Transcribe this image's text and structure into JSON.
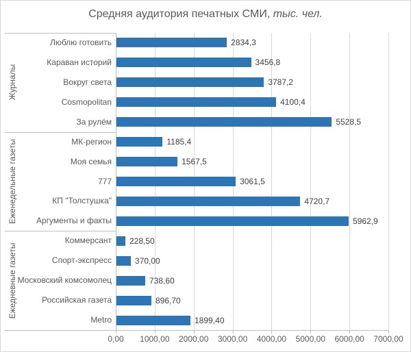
{
  "title": {
    "text": "Средняя аудитория печатных СМИ, ",
    "unit_italic": "тыс. чел."
  },
  "colors": {
    "bar": "#2E75B6",
    "gridline": "#D9D9D9",
    "axis_line": "#BFBFBF",
    "category_text": "#595959",
    "value_text": "#404040",
    "title_text": "#595959",
    "chart_border": "#D9D9D9",
    "background": "#FFFFFF"
  },
  "chart_data": {
    "type": "bar",
    "orientation": "horizontal",
    "title": "Средняя аудитория печатных СМИ, тыс. чел.",
    "xlabel": "",
    "ylabel": "",
    "xlim": [
      0,
      7000
    ],
    "x_tick_values": [
      0,
      1000,
      2000,
      3000,
      4000,
      5000,
      6000,
      7000
    ],
    "x_ticks": [
      "0,00",
      "1000,00",
      "2000,00",
      "3000,00",
      "4000,00",
      "5000,00",
      "6000,00",
      "7000,00"
    ],
    "grid": true,
    "legend": "none",
    "groups": [
      {
        "label": "Журналы",
        "items": [
          {
            "category": "Люблю готовить",
            "value": 2834.3,
            "value_label": "2834,3"
          },
          {
            "category": "Караван историй",
            "value": 3456.8,
            "value_label": "3456,8"
          },
          {
            "category": "Вокруг света",
            "value": 3787.2,
            "value_label": "3787,2"
          },
          {
            "category": "Cosmopolitan",
            "value": 4100.4,
            "value_label": "4100,4"
          },
          {
            "category": "За рулём",
            "value": 5528.5,
            "value_label": "5528,5"
          }
        ]
      },
      {
        "label": "Еженедельные газеты",
        "items": [
          {
            "category": "МК-регион",
            "value": 1185.4,
            "value_label": "1185,4"
          },
          {
            "category": "Моя семья",
            "value": 1567.5,
            "value_label": "1567,5"
          },
          {
            "category": "777",
            "value": 3061.5,
            "value_label": "3061,5"
          },
          {
            "category": "КП \"Толстушка\"",
            "value": 4720.7,
            "value_label": "4720,7"
          },
          {
            "category": "Аргументы и факты",
            "value": 5962.9,
            "value_label": "5962,9"
          }
        ]
      },
      {
        "label": "Ежедневные газеты",
        "items": [
          {
            "category": "Коммерсант",
            "value": 228.5,
            "value_label": "228,50"
          },
          {
            "category": "Спорт-экспресс",
            "value": 370.0,
            "value_label": "370,00"
          },
          {
            "category": "Московский комсомолец",
            "value": 738.6,
            "value_label": "738,60"
          },
          {
            "category": "Российская газета",
            "value": 896.7,
            "value_label": "896,70"
          },
          {
            "category": "Metro",
            "value": 1899.4,
            "value_label": "1899,40"
          }
        ]
      }
    ]
  }
}
